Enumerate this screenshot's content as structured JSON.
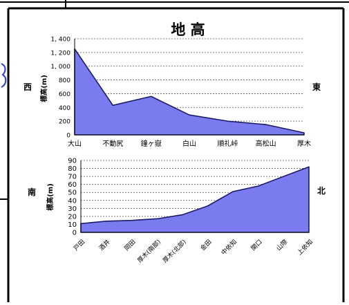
{
  "chart_data": [
    {
      "type": "area",
      "title": "地 高",
      "left_label": "西",
      "right_label": "東",
      "ylabel": "標高(m)",
      "ylim": [
        0,
        1400
      ],
      "yticks": [
        "0",
        "200",
        "400",
        "600",
        "800",
        "1, 000",
        "1, 200",
        "1, 400"
      ],
      "categories": [
        "大山",
        "不動尻",
        "鐘ヶ嶽",
        "白山",
        "順礼峠",
        "高松山",
        "厚木"
      ],
      "values": [
        1252,
        430,
        560,
        290,
        200,
        150,
        30
      ],
      "fill_color": "#7b7bf0",
      "line_color": "#1a1a66",
      "grid": "dashed-horizontal"
    },
    {
      "type": "area",
      "left_label": "南",
      "right_label": "北",
      "ylabel": "標高(m)",
      "ylim": [
        0,
        90
      ],
      "yticks": [
        "0",
        "10",
        "20",
        "30",
        "40",
        "50",
        "60",
        "70",
        "80",
        "90"
      ],
      "categories": [
        "戸田",
        "酒井",
        "岡田",
        "厚木(南部)",
        "厚木(北部)",
        "金田",
        "中依知",
        "関口",
        "山際",
        "上依知"
      ],
      "values": [
        11,
        14,
        15,
        17,
        22,
        33,
        51,
        58,
        70,
        82
      ],
      "fill_color": "#7b7bf0",
      "line_color": "#1a1a66",
      "grid": "dashed-horizontal"
    }
  ]
}
